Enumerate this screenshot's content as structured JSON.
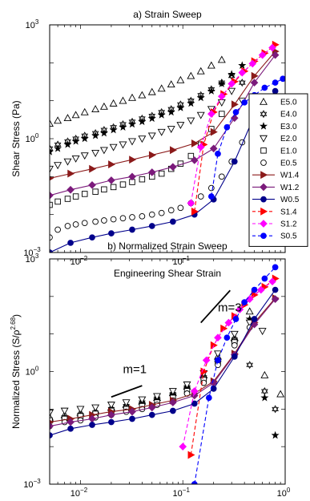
{
  "chart_data": [
    {
      "id": "a",
      "type": "scatter",
      "title": "a) Strain Sweep",
      "xlabel": "Engineering Shear Strain",
      "ylabel": "Shear Stress (Pa)",
      "xscale": "log",
      "yscale": "log",
      "xlim": [
        0.005,
        1
      ],
      "ylim": [
        0.001,
        1000
      ],
      "xticks": [
        {
          "v": 0.01,
          "b": "10",
          "e": "−2"
        },
        {
          "v": 0.1,
          "b": "10",
          "e": "−1"
        }
      ],
      "yticks": [
        {
          "v": 0.001,
          "b": "10",
          "e": "−3"
        },
        {
          "v": 1,
          "b": "10",
          "e": "0"
        },
        {
          "v": 1000,
          "b": "10",
          "e": "3"
        }
      ],
      "legend": {
        "placement": "right"
      },
      "series": [
        {
          "name": "E5.0",
          "marker": "triangle-up",
          "color": "#000000",
          "line": false,
          "x": [
            0.005,
            0.006,
            0.0075,
            0.009,
            0.011,
            0.014,
            0.017,
            0.021,
            0.026,
            0.032,
            0.04,
            0.05,
            0.062,
            0.077,
            0.095,
            0.12,
            0.15,
            0.19,
            0.24
          ],
          "y": [
            2.5,
            3,
            3.5,
            4.2,
            5,
            6,
            7,
            8.5,
            10,
            12,
            14,
            17,
            21,
            27,
            35,
            45,
            60,
            85,
            120
          ]
        },
        {
          "name": "E4.0",
          "marker": "star6",
          "color": "#000000",
          "line": false,
          "x": [
            0.005,
            0.006,
            0.0075,
            0.009,
            0.011,
            0.014,
            0.017,
            0.021,
            0.026,
            0.032,
            0.04,
            0.05,
            0.062,
            0.077,
            0.095,
            0.12,
            0.15,
            0.19,
            0.24,
            0.3,
            0.38
          ],
          "y": [
            0.55,
            0.7,
            0.85,
            1.0,
            1.2,
            1.4,
            1.7,
            2.0,
            2.4,
            2.8,
            3.4,
            4.0,
            5.0,
            6.0,
            8,
            10,
            14,
            20,
            30,
            45,
            30
          ]
        },
        {
          "name": "E3.0",
          "marker": "star5",
          "color": "#000000",
          "line": false,
          "x": [
            0.005,
            0.006,
            0.0075,
            0.009,
            0.011,
            0.014,
            0.017,
            0.021,
            0.026,
            0.032,
            0.04,
            0.05,
            0.062,
            0.077,
            0.095,
            0.12,
            0.15,
            0.19,
            0.24,
            0.3,
            0.38
          ],
          "y": [
            0.45,
            0.55,
            0.7,
            0.85,
            1.0,
            1.2,
            1.4,
            1.7,
            2.0,
            2.4,
            2.8,
            3.4,
            4.2,
            5,
            6.5,
            8.5,
            12,
            18,
            28,
            50,
            85
          ]
        },
        {
          "name": "E2.0",
          "marker": "triangle-down",
          "color": "#000000",
          "line": false,
          "x": [
            0.005,
            0.006,
            0.0075,
            0.009,
            0.011,
            0.014,
            0.017,
            0.021,
            0.026,
            0.032,
            0.04,
            0.05,
            0.062,
            0.077,
            0.095,
            0.12,
            0.15,
            0.19,
            0.24,
            0.3,
            0.38
          ],
          "y": [
            0.16,
            0.2,
            0.25,
            0.3,
            0.36,
            0.42,
            0.5,
            0.6,
            0.7,
            0.85,
            1.0,
            1.2,
            1.5,
            1.8,
            2.3,
            3.0,
            4.2,
            6,
            9,
            18,
            10
          ]
        },
        {
          "name": "E1.0",
          "marker": "square",
          "color": "#000000",
          "line": false,
          "x": [
            0.005,
            0.006,
            0.0075,
            0.009,
            0.011,
            0.014,
            0.017,
            0.021,
            0.026,
            0.032,
            0.04,
            0.05,
            0.062,
            0.077,
            0.095,
            0.12,
            0.15,
            0.19,
            0.24
          ],
          "y": [
            0.018,
            0.022,
            0.026,
            0.03,
            0.035,
            0.04,
            0.046,
            0.053,
            0.062,
            0.072,
            0.085,
            0.1,
            0.12,
            0.16,
            0.22,
            0.35,
            0.7,
            1.8,
            4.5
          ]
        },
        {
          "name": "E0.5",
          "marker": "circle",
          "color": "#000000",
          "line": false,
          "x": [
            0.005,
            0.006,
            0.0075,
            0.009,
            0.011,
            0.014,
            0.017,
            0.021,
            0.026,
            0.032,
            0.04,
            0.05,
            0.062,
            0.077,
            0.095,
            0.12,
            0.15,
            0.19,
            0.24,
            0.3,
            0.38
          ],
          "y": [
            0.0025,
            0.004,
            0.005,
            0.0055,
            0.006,
            0.0065,
            0.007,
            0.0075,
            0.008,
            0.0085,
            0.009,
            0.01,
            0.011,
            0.013,
            0.015,
            0.02,
            0.03,
            0.05,
            0.1,
            0.25,
            0.8
          ]
        },
        {
          "name": "W1.4",
          "marker": "triangle-right",
          "color": "#8b1a1a",
          "line": true,
          "x": [
            0.005,
            0.008,
            0.013,
            0.02,
            0.032,
            0.05,
            0.08,
            0.13,
            0.2,
            0.32,
            0.5,
            0.8
          ],
          "y": [
            0.09,
            0.12,
            0.16,
            0.21,
            0.28,
            0.37,
            0.5,
            0.75,
            1.5,
            8,
            45,
            200
          ]
        },
        {
          "name": "W1.2",
          "marker": "diamond",
          "color": "#7b1a7b",
          "line": true,
          "x": [
            0.005,
            0.008,
            0.013,
            0.02,
            0.032,
            0.05,
            0.08,
            0.13,
            0.2,
            0.32,
            0.5,
            0.8
          ],
          "y": [
            0.032,
            0.045,
            0.06,
            0.08,
            0.1,
            0.13,
            0.18,
            0.27,
            0.55,
            3.5,
            30,
            160
          ]
        },
        {
          "name": "W0.5",
          "marker": "circle-filled",
          "color": "#00008b",
          "line": true,
          "x": [
            0.005,
            0.008,
            0.013,
            0.02,
            0.032,
            0.05,
            0.08,
            0.13,
            0.2,
            0.32,
            0.5,
            0.8
          ],
          "y": [
            0.001,
            0.0018,
            0.0025,
            0.0032,
            0.004,
            0.005,
            0.0065,
            0.01,
            0.025,
            0.25,
            4,
            18
          ]
        },
        {
          "name": "S1.4",
          "marker": "triangle-right-filled",
          "color": "#ff0000",
          "line": "dashed",
          "x": [
            0.13,
            0.16,
            0.2,
            0.25,
            0.32,
            0.4,
            0.5,
            0.63,
            0.8
          ],
          "y": [
            0.012,
            0.7,
            5,
            15,
            32,
            60,
            110,
            180,
            300
          ]
        },
        {
          "name": "S1.2",
          "marker": "diamond-filled",
          "color": "#ff00ff",
          "line": "dashed",
          "x": [
            0.12,
            0.15,
            0.19,
            0.24,
            0.3,
            0.38,
            0.48,
            0.6,
            0.75
          ],
          "y": [
            0.02,
            0.6,
            4.5,
            13,
            28,
            55,
            95,
            160,
            250
          ]
        },
        {
          "name": "S0.5",
          "marker": "circle-filled",
          "color": "#0000ff",
          "line": "dashed",
          "x": [
            0.19,
            0.22,
            0.27,
            0.33,
            0.4,
            0.5,
            0.63,
            0.8,
            0.95
          ],
          "y": [
            0.03,
            0.4,
            2,
            5,
            9,
            14,
            22,
            30,
            38
          ]
        }
      ]
    },
    {
      "id": "b",
      "type": "scatter",
      "title": "b) Normalized Strain Sweep",
      "xlabel": "Engineering Shear Strain",
      "ylabel": "Normalized Stress (S/ρ",
      "ylabel_sup": "2.68",
      "ylabel_end": ")",
      "xscale": "log",
      "yscale": "log",
      "xlim": [
        0.005,
        1
      ],
      "ylim": [
        0.001,
        1000
      ],
      "xticks": [
        {
          "v": 0.01,
          "b": "10",
          "e": "−2"
        },
        {
          "v": 0.1,
          "b": "10",
          "e": "−1"
        },
        {
          "v": 1,
          "b": "10",
          "e": "0"
        }
      ],
      "yticks": [
        {
          "v": 0.001,
          "b": "10",
          "e": "−3"
        },
        {
          "v": 1,
          "b": "10",
          "e": "0"
        },
        {
          "v": 1000,
          "b": "10",
          "e": "3"
        }
      ],
      "annotations": [
        {
          "text": "m=1",
          "x": 0.026,
          "y": 0.9,
          "seg": [
            [
              0.02,
              0.21
            ],
            [
              0.04,
              0.42
            ]
          ]
        },
        {
          "text": "m=3",
          "x": 0.22,
          "y": 40,
          "seg": [
            [
              0.15,
              20
            ],
            [
              0.29,
              145
            ]
          ]
        }
      ],
      "series": [
        {
          "name": "E5.0",
          "marker": "triangle-up",
          "color": "#000000",
          "line": false,
          "x": [
            0.005,
            0.007,
            0.01,
            0.014,
            0.02,
            0.028,
            0.04,
            0.056,
            0.08,
            0.11,
            0.16,
            0.22,
            0.32,
            0.45,
            0.63,
            0.9
          ],
          "y": [
            0.06,
            0.07,
            0.08,
            0.09,
            0.11,
            0.13,
            0.16,
            0.2,
            0.27,
            0.4,
            0.8,
            2.5,
            8,
            40,
            0.8,
            0.25
          ]
        },
        {
          "name": "E4.0",
          "marker": "star6",
          "color": "#000000",
          "line": false,
          "x": [
            0.005,
            0.007,
            0.01,
            0.014,
            0.02,
            0.028,
            0.04,
            0.056,
            0.08,
            0.11,
            0.16,
            0.22,
            0.32,
            0.45,
            0.63,
            0.8
          ],
          "y": [
            0.05,
            0.06,
            0.07,
            0.08,
            0.1,
            0.12,
            0.15,
            0.19,
            0.25,
            0.38,
            0.7,
            2,
            7,
            1.5,
            0.3,
            0.1
          ]
        },
        {
          "name": "E3.0",
          "marker": "star5",
          "color": "#000000",
          "line": false,
          "x": [
            0.005,
            0.007,
            0.01,
            0.014,
            0.02,
            0.028,
            0.04,
            0.056,
            0.08,
            0.11,
            0.16,
            0.22,
            0.32,
            0.45,
            0.63,
            0.8
          ],
          "y": [
            0.045,
            0.055,
            0.065,
            0.075,
            0.09,
            0.11,
            0.14,
            0.18,
            0.24,
            0.36,
            0.65,
            1.8,
            6,
            25,
            0.2,
            0.02
          ]
        },
        {
          "name": "E2.0",
          "marker": "triangle-down",
          "color": "#000000",
          "line": false,
          "x": [
            0.005,
            0.007,
            0.01,
            0.014,
            0.02,
            0.028,
            0.04,
            0.056,
            0.08,
            0.11,
            0.16,
            0.22,
            0.32,
            0.45,
            0.6
          ],
          "y": [
            0.08,
            0.09,
            0.1,
            0.11,
            0.13,
            0.15,
            0.18,
            0.22,
            0.3,
            0.45,
            0.9,
            3,
            10,
            20,
            12
          ]
        },
        {
          "name": "E1.0",
          "marker": "square",
          "color": "#000000",
          "line": false,
          "x": [
            0.005,
            0.007,
            0.01,
            0.014,
            0.02,
            0.028,
            0.04,
            0.056,
            0.08,
            0.11,
            0.16,
            0.22,
            0.32
          ],
          "y": [
            0.05,
            0.055,
            0.065,
            0.075,
            0.09,
            0.1,
            0.12,
            0.15,
            0.2,
            0.3,
            0.6,
            1.8,
            6
          ]
        },
        {
          "name": "E0.5",
          "marker": "circle",
          "color": "#000000",
          "line": false,
          "x": [
            0.005,
            0.007,
            0.01,
            0.014,
            0.02,
            0.028,
            0.04,
            0.056,
            0.08,
            0.11,
            0.16,
            0.22,
            0.32,
            0.45
          ],
          "y": [
            0.035,
            0.045,
            0.05,
            0.06,
            0.07,
            0.085,
            0.1,
            0.13,
            0.17,
            0.26,
            0.5,
            1.5,
            5,
            15
          ]
        },
        {
          "name": "W1.4",
          "marker": "triangle-right",
          "color": "#8b1a1a",
          "line": true,
          "x": [
            0.005,
            0.008,
            0.013,
            0.02,
            0.032,
            0.05,
            0.08,
            0.13,
            0.2,
            0.32,
            0.5,
            0.8
          ],
          "y": [
            0.045,
            0.055,
            0.07,
            0.085,
            0.1,
            0.13,
            0.17,
            0.26,
            0.55,
            3,
            20,
            90
          ]
        },
        {
          "name": "W1.2",
          "marker": "diamond",
          "color": "#7b1a7b",
          "line": true,
          "x": [
            0.005,
            0.008,
            0.013,
            0.02,
            0.032,
            0.05,
            0.08,
            0.13,
            0.2,
            0.32,
            0.5,
            0.8
          ],
          "y": [
            0.035,
            0.045,
            0.055,
            0.07,
            0.085,
            0.11,
            0.15,
            0.23,
            0.5,
            2.8,
            18,
            85
          ]
        },
        {
          "name": "W0.5",
          "marker": "circle-filled",
          "color": "#00008b",
          "line": true,
          "x": [
            0.005,
            0.008,
            0.013,
            0.02,
            0.032,
            0.05,
            0.08,
            0.13,
            0.2,
            0.32,
            0.5,
            0.8
          ],
          "y": [
            0.02,
            0.03,
            0.038,
            0.045,
            0.055,
            0.07,
            0.09,
            0.14,
            0.35,
            2.5,
            25,
            150
          ]
        },
        {
          "name": "S1.4",
          "marker": "triangle-right-filled",
          "color": "#ff0000",
          "line": "dashed",
          "x": [
            0.12,
            0.16,
            0.2,
            0.25,
            0.32,
            0.4,
            0.5,
            0.63,
            0.8
          ],
          "y": [
            0.006,
            1,
            5,
            14,
            30,
            60,
            110,
            180,
            300
          ]
        },
        {
          "name": "S1.2",
          "marker": "diamond-filled",
          "color": "#ff00ff",
          "line": "dashed",
          "x": [
            0.1,
            0.13,
            0.17,
            0.22,
            0.28,
            0.36,
            0.45,
            0.58,
            0.75
          ],
          "y": [
            0.01,
            0.3,
            2,
            8,
            20,
            45,
            85,
            150,
            250
          ]
        },
        {
          "name": "S0.5",
          "marker": "circle-filled",
          "color": "#0000ff",
          "line": "dashed",
          "x": [
            0.13,
            0.18,
            0.22,
            0.27,
            0.33,
            0.4,
            0.5,
            0.63,
            0.8
          ],
          "y": [
            0.001,
            0.2,
            2,
            8,
            25,
            70,
            150,
            300,
            600
          ]
        }
      ]
    }
  ]
}
